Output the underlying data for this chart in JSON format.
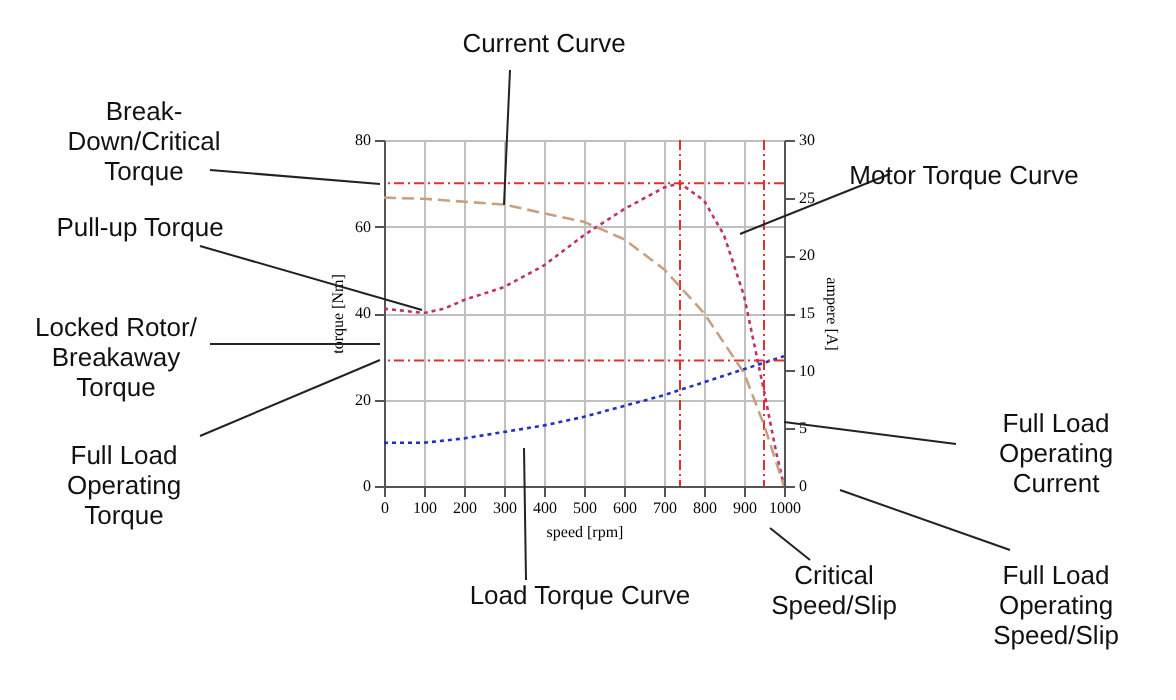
{
  "chart_data": {
    "type": "line",
    "xlabel": "speed [rpm]",
    "ylabel": "torque [Nm]",
    "y2label": "ampere [A]",
    "xlim": [
      0,
      1000
    ],
    "xticks": [
      0,
      100,
      200,
      300,
      400,
      500,
      600,
      700,
      800,
      900,
      1000
    ],
    "ylim": [
      0,
      80
    ],
    "yticks": [
      0,
      20,
      40,
      60,
      80
    ],
    "y2lim": [
      0,
      30
    ],
    "y2ticks": [
      0,
      5,
      10,
      15,
      20,
      25,
      30
    ],
    "grid": true,
    "marker": "none",
    "series": [
      {
        "color": "#c0306a",
        "line_style": "dotted",
        "x": [
          0,
          100,
          150,
          200,
          300,
          400,
          500,
          600,
          700,
          740,
          800,
          850,
          900,
          950,
          980,
          1000
        ],
        "values": [
          41,
          40,
          41,
          43,
          46,
          51,
          58,
          64,
          69,
          70,
          66,
          58,
          44,
          22,
          8,
          0
        ]
      },
      {
        "color": "#c8a080",
        "line_style": "dashed",
        "axis": "y2",
        "x": [
          0,
          100,
          300,
          500,
          600,
          700,
          800,
          900,
          950,
          1000
        ],
        "values": [
          25,
          24.9,
          24.4,
          22.9,
          21.4,
          18.8,
          15,
          9.8,
          5.3,
          0
        ]
      },
      {
        "color": "#2030c0",
        "line_style": "dotted",
        "x": [
          0,
          100,
          200,
          300,
          400,
          500,
          600,
          700,
          800,
          900,
          1000
        ],
        "values": [
          10,
          10,
          11,
          12.5,
          14,
          16,
          18.5,
          21,
          24,
          27,
          30
        ]
      }
    ],
    "ref_lines": [
      {
        "axis": "y",
        "value": 70,
        "color": "#e03030",
        "line_style": "dashed"
      },
      {
        "axis": "y",
        "value": 29,
        "color": "#e03030",
        "line_style": "dashed"
      },
      {
        "axis": "x",
        "value": 740,
        "color": "#e03030",
        "line_style": "dashed"
      },
      {
        "axis": "x",
        "value": 950,
        "color": "#e03030",
        "line_style": "dashed"
      }
    ],
    "annotations": [
      "Break-\nDown/Critical\nTorque",
      {
        "text": "Current Curve",
        "x": 300,
        "y": 65
      },
      "Pull-up Torque",
      "Locked Rotor/\nBreakaway\nTorque",
      "Full Load\nOperating\nTorque",
      "Motor Torque Curve",
      "Full Load\nOperating\nCurrent",
      "Load Torque Curve",
      "Critical\nSpeed/Slip",
      "Full Load\nOperating\nSpeed/Slip"
    ]
  }
}
